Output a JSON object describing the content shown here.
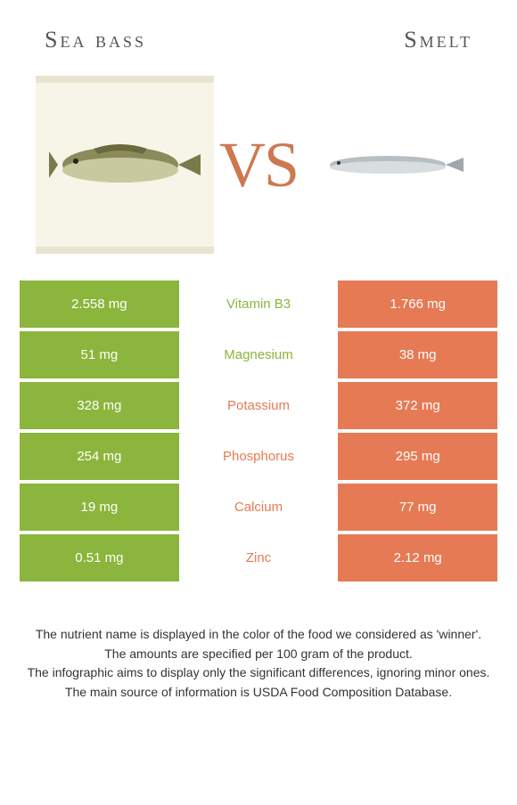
{
  "left_title": "Sea bass",
  "right_title": "Smelt",
  "vs_text": "VS",
  "colors": {
    "left": "#8bb53c",
    "right": "#e67a54",
    "mid_bg": "#ffffff"
  },
  "rows": [
    {
      "left": "2.558 mg",
      "nutrient": "Vitamin B3",
      "right": "1.766 mg",
      "winner": "left"
    },
    {
      "left": "51 mg",
      "nutrient": "Magnesium",
      "right": "38 mg",
      "winner": "left"
    },
    {
      "left": "328 mg",
      "nutrient": "Potassium",
      "right": "372 mg",
      "winner": "right"
    },
    {
      "left": "254 mg",
      "nutrient": "Phosphorus",
      "right": "295 mg",
      "winner": "right"
    },
    {
      "left": "19 mg",
      "nutrient": "Calcium",
      "right": "77 mg",
      "winner": "right"
    },
    {
      "left": "0.51 mg",
      "nutrient": "Zinc",
      "right": "2.12 mg",
      "winner": "right"
    }
  ],
  "footnotes": [
    "The nutrient name is displayed in the color of the food we considered as 'winner'.",
    "The amounts are specified per 100 gram of the product.",
    "The infographic aims to display only the significant differences, ignoring minor ones.",
    "The main source of information is USDA Food Composition Database."
  ]
}
